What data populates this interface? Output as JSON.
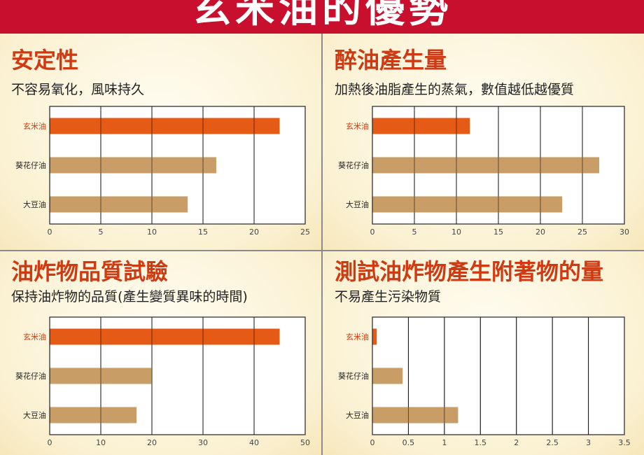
{
  "header": {
    "title": "玄米油的優勢"
  },
  "colors": {
    "highlight": "#e55a14",
    "other": "#c99e66",
    "highlight_label": "#d23a0d",
    "banner": "#c8102e",
    "title": "#d03a12"
  },
  "chart_data": [
    {
      "type": "bar",
      "orientation": "horizontal",
      "title": "安定性",
      "subtitle": "不容易氧化，風味持久",
      "categories": [
        "玄米油",
        "葵花仔油",
        "大豆油"
      ],
      "values": [
        22.5,
        16.3,
        13.5
      ],
      "xlim": [
        0,
        25
      ],
      "ticks": [
        "0",
        "5",
        "10",
        "15",
        "20",
        "25"
      ],
      "grid": true
    },
    {
      "type": "bar",
      "orientation": "horizontal",
      "title": "醉油產生量",
      "subtitle": "加熱後油脂產生的蒸氣，數值越低越優質",
      "categories": [
        "玄米油",
        "葵花仔油",
        "大豆油"
      ],
      "values": [
        11.6,
        27.0,
        22.6
      ],
      "xlim": [
        0,
        30
      ],
      "ticks": [
        "0",
        "5",
        "10",
        "15",
        "20",
        "25",
        "30"
      ],
      "grid": true
    },
    {
      "type": "bar",
      "orientation": "horizontal",
      "title": "油炸物品質試驗",
      "subtitle": "保持油炸物的品質(產生變質異味的時間)",
      "categories": [
        "玄米油",
        "葵花仔油",
        "大豆油"
      ],
      "values": [
        45,
        20,
        17
      ],
      "xlim": [
        0,
        50
      ],
      "ticks": [
        "0",
        "10",
        "20",
        "30",
        "40",
        "50"
      ],
      "grid": true
    },
    {
      "type": "bar",
      "orientation": "horizontal",
      "title": "測試油炸物產生附著物的量",
      "subtitle": "不易產生污染物質",
      "categories": [
        "玄米油",
        "葵花仔油",
        "大豆油"
      ],
      "values": [
        0.06,
        0.42,
        1.19
      ],
      "xlim": [
        0,
        3.5
      ],
      "ticks": [
        "0",
        "0.5",
        "1",
        "1.5",
        "2",
        "2.5",
        "3",
        "3.5"
      ],
      "grid": true
    }
  ]
}
